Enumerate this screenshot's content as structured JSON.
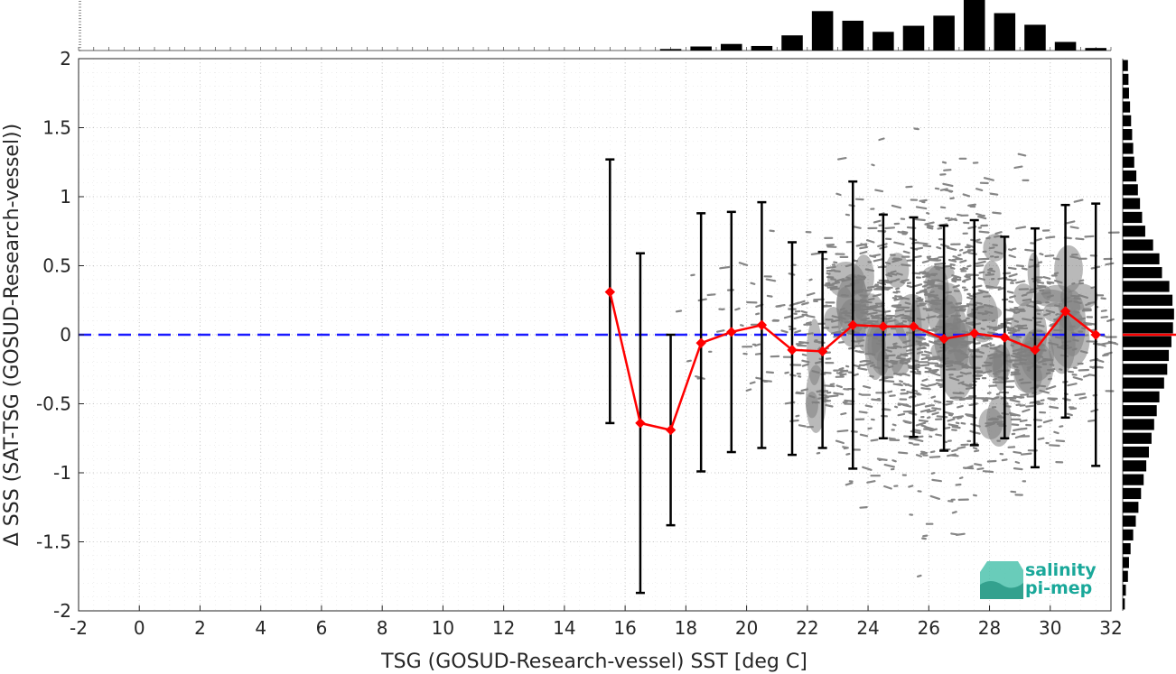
{
  "chart_data": {
    "type": "scatter",
    "title": "",
    "xlabel": "TSG (GOSUD-Research-vessel) SST [deg C]",
    "ylabel": "Δ SSS (SAT-TSG (GOSUD-Research-vessel))",
    "xlim": [
      -2,
      32
    ],
    "ylim": [
      -2,
      2
    ],
    "x_ticks": [
      -2,
      0,
      2,
      4,
      6,
      8,
      10,
      12,
      14,
      16,
      18,
      20,
      22,
      24,
      26,
      28,
      30,
      32
    ],
    "y_ticks": [
      -2,
      -1.5,
      -1,
      -0.5,
      0,
      0.5,
      1,
      1.5,
      2
    ],
    "grid": true,
    "zero_line": {
      "y": 0,
      "color": "#1a1aff",
      "style": "dashed"
    },
    "binned_mean": {
      "color": "#ff0000",
      "x": [
        15.5,
        16.5,
        17.5,
        18.5,
        19.5,
        20.5,
        21.5,
        22.5,
        23.5,
        24.5,
        25.5,
        26.5,
        27.5,
        28.5,
        29.5,
        30.5,
        31.5
      ],
      "y": [
        0.31,
        -0.64,
        -0.69,
        -0.06,
        0.02,
        0.07,
        -0.11,
        -0.12,
        0.07,
        0.06,
        0.06,
        -0.03,
        0.01,
        -0.02,
        -0.11,
        0.17,
        0.0
      ],
      "err_low": [
        -0.64,
        -1.87,
        -1.38,
        -0.99,
        -0.85,
        -0.82,
        -0.87,
        -0.82,
        -0.97,
        -0.75,
        -0.74,
        -0.84,
        -0.8,
        -0.75,
        -0.96,
        -0.6,
        -0.95
      ],
      "err_high": [
        1.27,
        0.59,
        0.0,
        0.88,
        0.89,
        0.96,
        0.67,
        0.6,
        1.11,
        0.87,
        0.85,
        0.79,
        0.83,
        0.71,
        0.77,
        0.94,
        0.95
      ]
    },
    "scatter_cloud": {
      "color": "#808080",
      "x_range": [
        16.5,
        32
      ],
      "y_range": [
        -2,
        2
      ]
    },
    "top_histogram": {
      "bin_centers": [
        17.5,
        18.5,
        19.5,
        20.5,
        21.5,
        22.5,
        23.5,
        24.5,
        25.5,
        26.5,
        27.5,
        28.5,
        29.5,
        30.5,
        31.5
      ],
      "relative_counts": [
        0.03,
        0.08,
        0.13,
        0.09,
        0.3,
        0.78,
        0.59,
        0.37,
        0.49,
        0.69,
        1.0,
        0.74,
        0.51,
        0.17,
        0.05
      ]
    },
    "right_histogram": {
      "bin_centers": [
        1.95,
        1.85,
        1.75,
        1.65,
        1.55,
        1.45,
        1.35,
        1.25,
        1.15,
        1.05,
        0.95,
        0.85,
        0.75,
        0.65,
        0.55,
        0.45,
        0.35,
        0.25,
        0.15,
        0.05,
        -0.05,
        -0.15,
        -0.25,
        -0.35,
        -0.45,
        -0.55,
        -0.65,
        -0.75,
        -0.85,
        -0.95,
        -1.05,
        -1.15,
        -1.25,
        -1.35,
        -1.45,
        -1.55,
        -1.65,
        -1.75,
        -1.85,
        -1.95
      ],
      "relative_counts": [
        0.1,
        0.11,
        0.12,
        0.14,
        0.16,
        0.18,
        0.2,
        0.22,
        0.26,
        0.29,
        0.33,
        0.37,
        0.43,
        0.58,
        0.7,
        0.75,
        0.89,
        0.95,
        0.98,
        0.96,
        0.93,
        0.88,
        0.85,
        0.79,
        0.7,
        0.65,
        0.6,
        0.55,
        0.5,
        0.45,
        0.4,
        0.35,
        0.3,
        0.25,
        0.2,
        0.15,
        0.12,
        0.1,
        0.06,
        0.04
      ]
    },
    "right_histogram_marker": {
      "y": 0,
      "color": "#ff0000"
    }
  },
  "logo": {
    "line1": "salinity",
    "line2": "pi-mep",
    "color": "#1aa89a"
  }
}
